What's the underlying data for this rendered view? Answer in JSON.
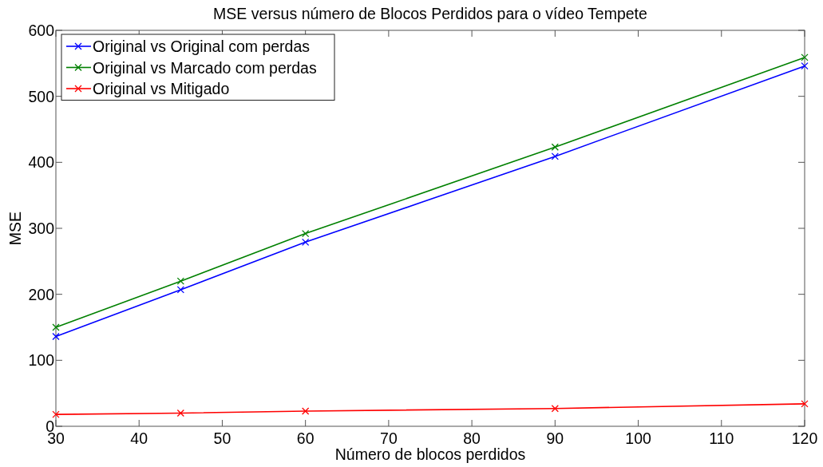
{
  "chart_data": {
    "type": "line",
    "title": "MSE versus número de Blocos Perdidos para o vídeo Tempete",
    "xlabel": "Número de blocos perdidos",
    "ylabel": "MSE",
    "x": [
      30,
      45,
      60,
      90,
      120
    ],
    "series": [
      {
        "name": "Original vs Original com perdas",
        "color": "#0000ff",
        "values": [
          136,
          207,
          279,
          409,
          546
        ]
      },
      {
        "name": "Original vs Marcado com perdas",
        "color": "#008000",
        "values": [
          150,
          220,
          292,
          423,
          559
        ]
      },
      {
        "name": "Original vs Mitigado",
        "color": "#ff0000",
        "values": [
          18,
          20,
          23,
          27,
          34
        ]
      }
    ],
    "xlim": [
      30,
      120
    ],
    "xticks": [
      30,
      40,
      50,
      60,
      70,
      80,
      90,
      100,
      110,
      120
    ],
    "ylim": [
      0,
      600
    ],
    "yticks": [
      0,
      100,
      200,
      300,
      400,
      500,
      600
    ],
    "grid": false,
    "legend": "top left",
    "marker": "cross",
    "line_style": "solid"
  }
}
